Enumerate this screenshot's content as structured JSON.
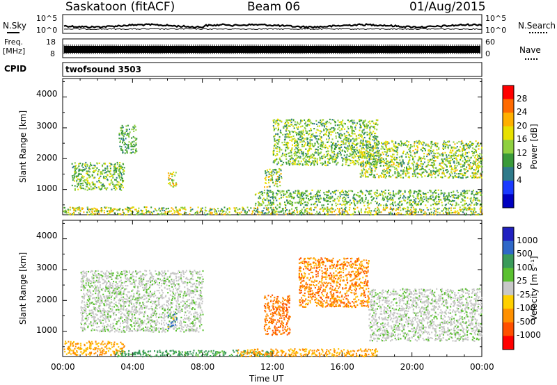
{
  "header": {
    "station": "Saskatoon (fitACF)",
    "beam": "Beam 06",
    "date": "01/Aug/2015"
  },
  "noise_panel": {
    "left_label": "N.Sky",
    "right_label": "N.Search",
    "tick_top": "10^5",
    "tick_bottom": "10^0"
  },
  "freq_panel": {
    "left_label_line1": "Freq.",
    "left_label_line2": "[MHz]",
    "left_tick_top": "18",
    "left_tick_bottom": "8",
    "right_label": "Nave",
    "right_tick_top": "60",
    "right_tick_bottom": "0"
  },
  "cpid_panel": {
    "label": "CPID",
    "program": "twofsound 3503"
  },
  "power_panel": {
    "ylabel": "Slant Range [km]",
    "colorbar_label": "Power [dB]",
    "colorbar_ticks": [
      "28",
      "24",
      "20",
      "16",
      "12",
      "8",
      "4"
    ],
    "colorbar_colors": [
      "#ff0000",
      "#ff6a00",
      "#ffb000",
      "#e8e000",
      "#8fd040",
      "#3a9a3a",
      "#2f7a8a",
      "#1a3aff",
      "#0000c0"
    ]
  },
  "velocity_panel": {
    "ylabel": "Slant Range [km]",
    "colorbar_label": "Velocity [m s⁻¹]",
    "colorbar_ticks": [
      "1000",
      "500",
      "100",
      "25",
      "-25",
      "-100",
      "-500",
      "-1000"
    ],
    "colorbar_colors": [
      "#2020c0",
      "#2f68c8",
      "#3a9a5a",
      "#5ac030",
      "#c8c8c8",
      "#ffd000",
      "#ff9000",
      "#ff5000",
      "#ff0000"
    ]
  },
  "x_axis": {
    "label": "Time UT",
    "ticks": [
      "00:00",
      "04:00",
      "08:00",
      "12:00",
      "16:00",
      "20:00",
      "00:00"
    ]
  },
  "chart_data": [
    {
      "type": "heatmap",
      "title": "",
      "quantity": "Power",
      "units": "dB",
      "xlabel": "Time UT",
      "ylabel": "Slant Range [km]",
      "x_ticks": [
        "00:00",
        "04:00",
        "08:00",
        "12:00",
        "16:00",
        "20:00",
        "00:00"
      ],
      "y_ticks": [
        1000,
        2000,
        3000,
        4000
      ],
      "ylim": [
        180,
        4600
      ],
      "colorbar_range": [
        0,
        30
      ],
      "colorbar_ticks": [
        4,
        8,
        12,
        16,
        20,
        24,
        28
      ],
      "scatter_regions": [
        {
          "t_start": 0.0,
          "t_end": 24.0,
          "range_km": [
            200,
            450
          ],
          "power_db": [
            8,
            24
          ]
        },
        {
          "t_start": 0.5,
          "t_end": 3.5,
          "range_km": [
            1000,
            1900
          ],
          "power_db": [
            8,
            20
          ]
        },
        {
          "t_start": 3.2,
          "t_end": 4.2,
          "range_km": [
            2200,
            3100
          ],
          "power_db": [
            8,
            16
          ]
        },
        {
          "t_start": 6.0,
          "t_end": 6.5,
          "range_km": [
            1100,
            1600
          ],
          "power_db": [
            12,
            26
          ]
        },
        {
          "t_start": 11.5,
          "t_end": 12.5,
          "range_km": [
            1100,
            1700
          ],
          "power_db": [
            8,
            24
          ]
        },
        {
          "t_start": 12.0,
          "t_end": 18.0,
          "range_km": [
            1800,
            3300
          ],
          "power_db": [
            8,
            20
          ]
        },
        {
          "t_start": 17.0,
          "t_end": 24.0,
          "range_km": [
            1400,
            2600
          ],
          "power_db": [
            8,
            22
          ]
        },
        {
          "t_start": 11.0,
          "t_end": 24.0,
          "range_km": [
            500,
            1000
          ],
          "power_db": [
            8,
            18
          ]
        }
      ]
    },
    {
      "type": "heatmap",
      "title": "",
      "quantity": "Velocity",
      "units": "m s^-1",
      "xlabel": "Time UT",
      "ylabel": "Slant Range [km]",
      "x_ticks": [
        "00:00",
        "04:00",
        "08:00",
        "12:00",
        "16:00",
        "20:00",
        "00:00"
      ],
      "y_ticks": [
        1000,
        2000,
        3000,
        4000
      ],
      "ylim": [
        180,
        4600
      ],
      "colorbar_ticks": [
        1000,
        500,
        100,
        25,
        -25,
        -100,
        -500,
        -1000
      ],
      "scatter_regions": [
        {
          "t_start": 0.0,
          "t_end": 3.5,
          "range_km": [
            250,
            700
          ],
          "velocity": [
            -300,
            -100
          ]
        },
        {
          "t_start": 3.0,
          "t_end": 12.0,
          "range_km": [
            200,
            400
          ],
          "velocity": [
            25,
            200
          ]
        },
        {
          "t_start": 10.0,
          "t_end": 18.0,
          "range_km": [
            200,
            450
          ],
          "velocity": [
            -300,
            -100
          ]
        },
        {
          "t_start": 1.0,
          "t_end": 8.0,
          "range_km": [
            1000,
            3000
          ],
          "velocity": [
            -25,
            25
          ]
        },
        {
          "t_start": 11.5,
          "t_end": 13.0,
          "range_km": [
            900,
            2200
          ],
          "velocity": [
            -500,
            -200
          ]
        },
        {
          "t_start": 13.5,
          "t_end": 17.5,
          "range_km": [
            1800,
            3400
          ],
          "velocity": [
            -500,
            -100
          ]
        },
        {
          "t_start": 17.5,
          "t_end": 24.0,
          "range_km": [
            700,
            2400
          ],
          "velocity": [
            -25,
            25
          ]
        },
        {
          "t_start": 6.0,
          "t_end": 6.5,
          "range_km": [
            1100,
            1600
          ],
          "velocity": [
            -100,
            500
          ]
        }
      ]
    }
  ]
}
